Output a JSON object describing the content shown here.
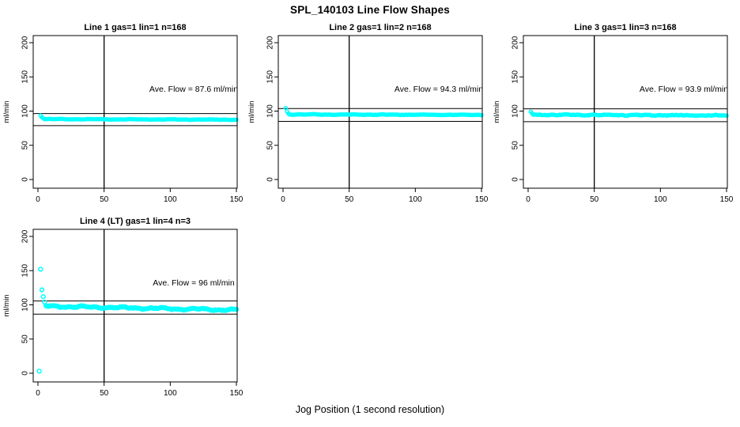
{
  "page": {
    "title": "SPL_140103  Line Flow Shapes",
    "x_axis_label": "Jog Position (1 second resolution)"
  },
  "colors": {
    "data_points": "#00FFFF",
    "axis": "#000000",
    "background": "#FFFFFF"
  },
  "chart_data": [
    {
      "type": "scatter",
      "title": "Line 1 gas=1 lin=1 n=168",
      "gas": 1,
      "lin": 1,
      "n": 168,
      "annotation": "Ave. Flow =  87.6  ml/min",
      "ave_flow_ml_min": 87.6,
      "ylabel": "ml/min",
      "x_ticks": [
        0,
        50,
        100,
        150
      ],
      "y_ticks": [
        0,
        50,
        100,
        150,
        200
      ],
      "xlim": [
        0,
        150
      ],
      "ylim": [
        -13,
        210
      ],
      "vline_x": 50,
      "ref_lines": [
        78.8,
        96.4
      ],
      "transient_points": [
        [
          2,
          93.5
        ],
        [
          3,
          91
        ],
        [
          4,
          89.5
        ]
      ],
      "steady": {
        "x_start": 5,
        "x_end": 150,
        "y_start": 88.3,
        "y_end": 87.5,
        "noise": 0.45,
        "wiggle": 0.35,
        "seed": 11
      },
      "col": 0,
      "row": 0
    },
    {
      "type": "scatter",
      "title": "Line 2 gas=1 lin=2 n=168",
      "gas": 1,
      "lin": 2,
      "n": 168,
      "annotation": "Ave. Flow =  94.3  ml/min",
      "ave_flow_ml_min": 94.3,
      "ylabel": "ml/min",
      "x_ticks": [
        0,
        50,
        100,
        150
      ],
      "y_ticks": [
        0,
        50,
        100,
        150,
        200
      ],
      "xlim": [
        0,
        150
      ],
      "ylim": [
        -13,
        210
      ],
      "vline_x": 50,
      "ref_lines": [
        84.9,
        103.7
      ],
      "transient_points": [
        [
          2,
          104.5
        ],
        [
          3,
          99.5
        ],
        [
          4,
          96.5
        ]
      ],
      "steady": {
        "x_start": 5,
        "x_end": 150,
        "y_start": 95.2,
        "y_end": 94.4,
        "noise": 0.5,
        "wiggle": 0.35,
        "seed": 22
      },
      "col": 1,
      "row": 0
    },
    {
      "type": "scatter",
      "title": "Line 3 gas=1 lin=3 n=168",
      "gas": 1,
      "lin": 3,
      "n": 168,
      "annotation": "Ave. Flow =  93.9  ml/min",
      "ave_flow_ml_min": 93.9,
      "ylabel": "ml/min",
      "x_ticks": [
        0,
        50,
        100,
        150
      ],
      "y_ticks": [
        0,
        50,
        100,
        150,
        200
      ],
      "xlim": [
        0,
        150
      ],
      "ylim": [
        -13,
        210
      ],
      "vline_x": 50,
      "ref_lines": [
        84.5,
        103.3
      ],
      "transient_points": [
        [
          2,
          99
        ],
        [
          3,
          96.5
        ]
      ],
      "steady": {
        "x_start": 4,
        "x_end": 150,
        "y_start": 94.6,
        "y_end": 93.6,
        "noise": 0.9,
        "wiggle": 0.5,
        "seed": 33
      },
      "col": 2,
      "row": 0
    },
    {
      "type": "scatter",
      "title": "Line 4 (LT) gas=1 lin=4 n=3",
      "gas": 1,
      "lin": 4,
      "n": 3,
      "annotation": "Ave. Flow =  96  ml/min",
      "ave_flow_ml_min": 96,
      "ylabel": "ml/min",
      "x_ticks": [
        0,
        50,
        100,
        150
      ],
      "y_ticks": [
        0,
        50,
        100,
        150,
        200
      ],
      "xlim": [
        0,
        150
      ],
      "ylim": [
        -13,
        210
      ],
      "vline_x": 50,
      "ref_lines": [
        86.4,
        105.6
      ],
      "transient_points": [
        [
          1,
          3
        ],
        [
          2,
          152
        ],
        [
          3,
          122
        ],
        [
          4,
          112
        ],
        [
          5,
          104
        ]
      ],
      "steady": {
        "x_start": 6,
        "x_end": 150,
        "y_start": 98,
        "y_end": 92.5,
        "noise": 1.0,
        "wiggle": 1.3,
        "seed": 44
      },
      "marker_r": 2.4,
      "col": 0,
      "row": 1
    }
  ]
}
